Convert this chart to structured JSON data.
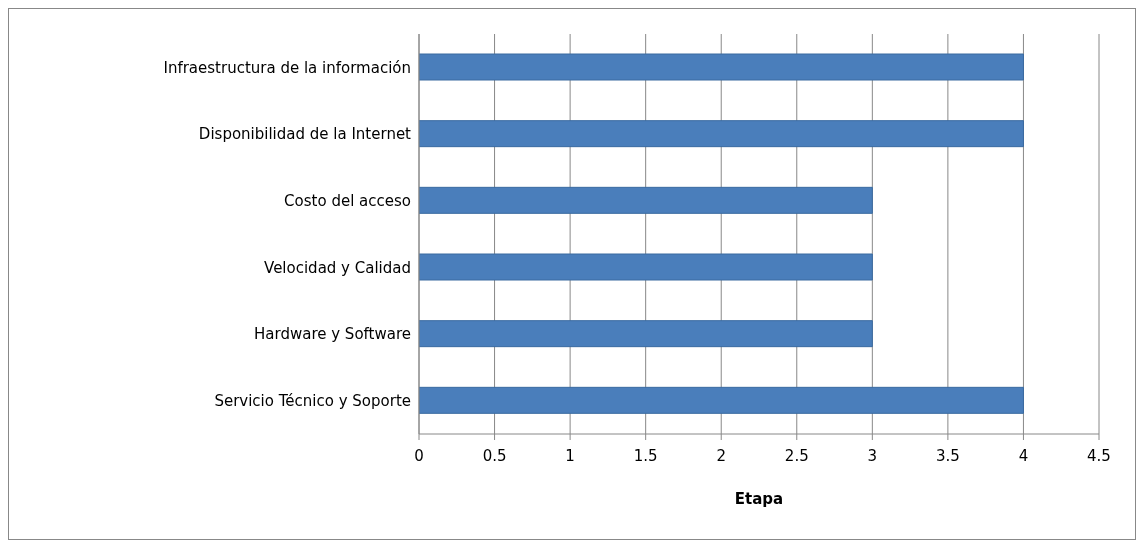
{
  "chart_data": {
    "type": "bar",
    "orientation": "horizontal",
    "xlabel": "Etapa",
    "categories": [
      "Infraestructura de la información",
      "Disponibilidad de la Internet",
      "Costo del acceso",
      "Velocidad y Calidad",
      "Hardware y Software",
      "Servicio Técnico y Soporte"
    ],
    "values": [
      4,
      4,
      3,
      3,
      3,
      4
    ],
    "color": "#4a7ebb",
    "xlim": [
      0,
      4.5
    ],
    "xticks": [
      0,
      0.5,
      1,
      1.5,
      2,
      2.5,
      3,
      3.5,
      4,
      4.5
    ],
    "grid": "x",
    "legend": false
  }
}
